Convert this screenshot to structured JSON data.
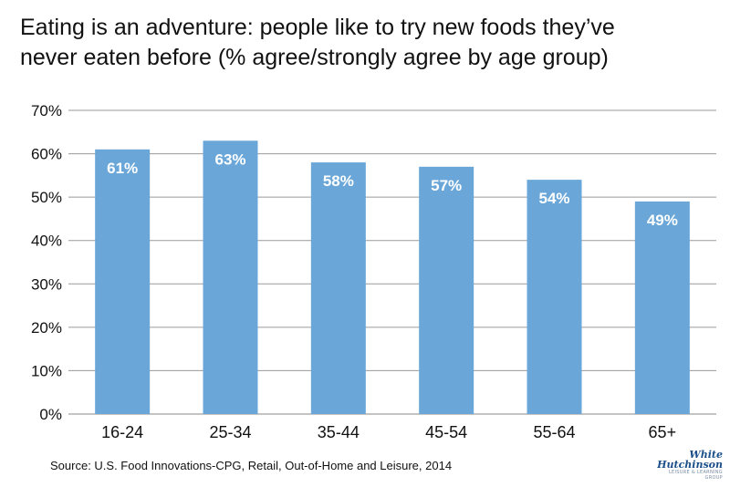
{
  "chart_data": {
    "type": "bar",
    "title_lines": [
      "Eating is an adventure: people like to try new foods they’ve",
      "never eaten before (% agree/strongly agree by age group)"
    ],
    "categories": [
      "16-24",
      "25-34",
      "35-44",
      "45-54",
      "55-64",
      "65+"
    ],
    "values": [
      61,
      63,
      58,
      57,
      54,
      49
    ],
    "data_labels": [
      "61%",
      "63%",
      "58%",
      "57%",
      "54%",
      "49%"
    ],
    "y_ticks": [
      "0%",
      "10%",
      "20%",
      "30%",
      "40%",
      "50%",
      "60%",
      "70%"
    ],
    "ylim": [
      0,
      70
    ],
    "grid": true,
    "bar_color": "#6aa7d8",
    "source": "Source: U.S. Food Innovations-CPG, Retail, Out-of-Home and Leisure, 2014"
  },
  "logo": {
    "line1": "White",
    "line2": "Hutchinson",
    "tagline": "LEISURE & LEARNING GROUP"
  }
}
